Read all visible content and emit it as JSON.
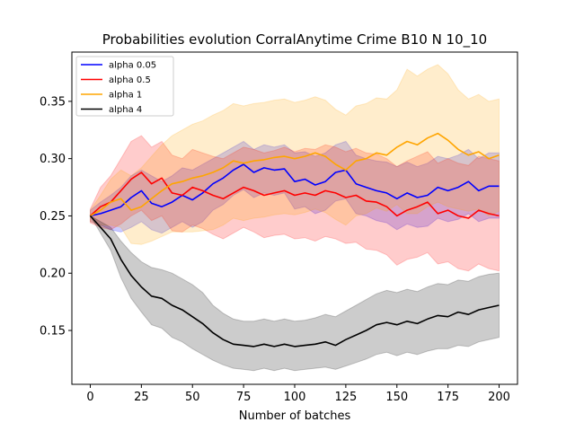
{
  "chart_data": {
    "type": "line",
    "title": "Probabilities evolution CorralAnytime Crime B10 N 10_10",
    "xlabel": "Number of batches",
    "ylabel": "",
    "xlim": [
      -9,
      209
    ],
    "ylim": [
      0.103,
      0.393
    ],
    "xticks": [
      0,
      25,
      50,
      75,
      100,
      125,
      150,
      175,
      200
    ],
    "yticks": [
      0.15,
      0.2,
      0.25,
      0.3,
      0.35
    ],
    "ytick_labels": [
      "0.15",
      "0.20",
      "0.25",
      "0.30",
      "0.35"
    ],
    "grid": false,
    "legend_position": "top-left",
    "x": [
      0,
      5,
      10,
      15,
      20,
      25,
      30,
      35,
      40,
      45,
      50,
      55,
      60,
      65,
      70,
      75,
      80,
      85,
      90,
      95,
      100,
      105,
      110,
      115,
      120,
      125,
      130,
      135,
      140,
      145,
      150,
      155,
      160,
      165,
      170,
      175,
      180,
      185,
      190,
      195,
      200
    ],
    "series": [
      {
        "name": "alpha 0.05",
        "color": "#0000ff",
        "values": [
          0.25,
          0.252,
          0.255,
          0.258,
          0.266,
          0.272,
          0.261,
          0.258,
          0.262,
          0.268,
          0.264,
          0.27,
          0.278,
          0.283,
          0.29,
          0.295,
          0.288,
          0.292,
          0.29,
          0.291,
          0.28,
          0.282,
          0.277,
          0.28,
          0.288,
          0.29,
          0.278,
          0.275,
          0.272,
          0.27,
          0.265,
          0.27,
          0.266,
          0.268,
          0.275,
          0.272,
          0.275,
          0.28,
          0.272,
          0.276,
          0.276
        ],
        "upper": [
          0.255,
          0.262,
          0.268,
          0.275,
          0.285,
          0.29,
          0.285,
          0.28,
          0.285,
          0.292,
          0.29,
          0.295,
          0.3,
          0.305,
          0.31,
          0.315,
          0.308,
          0.312,
          0.31,
          0.312,
          0.305,
          0.306,
          0.302,
          0.305,
          0.312,
          0.315,
          0.303,
          0.3,
          0.298,
          0.297,
          0.293,
          0.297,
          0.293,
          0.296,
          0.302,
          0.3,
          0.303,
          0.308,
          0.3,
          0.305,
          0.305
        ],
        "lower": [
          0.245,
          0.242,
          0.238,
          0.236,
          0.24,
          0.245,
          0.238,
          0.235,
          0.24,
          0.245,
          0.24,
          0.245,
          0.255,
          0.26,
          0.268,
          0.273,
          0.266,
          0.27,
          0.268,
          0.27,
          0.256,
          0.258,
          0.252,
          0.255,
          0.263,
          0.265,
          0.252,
          0.25,
          0.246,
          0.244,
          0.238,
          0.243,
          0.24,
          0.241,
          0.248,
          0.245,
          0.247,
          0.252,
          0.245,
          0.248,
          0.248
        ]
      },
      {
        "name": "alpha 0.5",
        "color": "#ff0000",
        "values": [
          0.25,
          0.258,
          0.262,
          0.272,
          0.282,
          0.288,
          0.278,
          0.283,
          0.27,
          0.268,
          0.275,
          0.272,
          0.268,
          0.265,
          0.27,
          0.275,
          0.272,
          0.268,
          0.27,
          0.272,
          0.268,
          0.27,
          0.268,
          0.272,
          0.27,
          0.266,
          0.268,
          0.263,
          0.262,
          0.258,
          0.25,
          0.255,
          0.258,
          0.262,
          0.252,
          0.255,
          0.25,
          0.248,
          0.255,
          0.252,
          0.25
        ],
        "upper": [
          0.256,
          0.275,
          0.285,
          0.3,
          0.315,
          0.32,
          0.31,
          0.315,
          0.303,
          0.3,
          0.308,
          0.305,
          0.302,
          0.3,
          0.305,
          0.31,
          0.308,
          0.305,
          0.307,
          0.31,
          0.306,
          0.309,
          0.308,
          0.312,
          0.31,
          0.306,
          0.309,
          0.305,
          0.304,
          0.3,
          0.293,
          0.298,
          0.302,
          0.306,
          0.296,
          0.3,
          0.296,
          0.294,
          0.302,
          0.3,
          0.298
        ],
        "lower": [
          0.244,
          0.24,
          0.238,
          0.243,
          0.25,
          0.255,
          0.246,
          0.25,
          0.237,
          0.236,
          0.242,
          0.239,
          0.234,
          0.23,
          0.235,
          0.24,
          0.236,
          0.231,
          0.233,
          0.234,
          0.23,
          0.231,
          0.228,
          0.232,
          0.23,
          0.226,
          0.227,
          0.221,
          0.22,
          0.216,
          0.207,
          0.212,
          0.214,
          0.218,
          0.208,
          0.21,
          0.204,
          0.202,
          0.208,
          0.204,
          0.202
        ]
      },
      {
        "name": "alpha 1",
        "color": "#ffa500",
        "values": [
          0.25,
          0.255,
          0.262,
          0.265,
          0.255,
          0.258,
          0.265,
          0.272,
          0.278,
          0.28,
          0.283,
          0.285,
          0.288,
          0.292,
          0.298,
          0.296,
          0.298,
          0.299,
          0.301,
          0.302,
          0.3,
          0.302,
          0.305,
          0.302,
          0.295,
          0.29,
          0.298,
          0.3,
          0.305,
          0.303,
          0.31,
          0.315,
          0.312,
          0.318,
          0.322,
          0.316,
          0.308,
          0.303,
          0.306,
          0.3,
          0.303
        ],
        "upper": [
          0.255,
          0.268,
          0.282,
          0.29,
          0.285,
          0.292,
          0.302,
          0.312,
          0.32,
          0.325,
          0.33,
          0.333,
          0.338,
          0.342,
          0.348,
          0.346,
          0.348,
          0.349,
          0.351,
          0.352,
          0.349,
          0.351,
          0.354,
          0.351,
          0.343,
          0.338,
          0.346,
          0.348,
          0.353,
          0.352,
          0.36,
          0.378,
          0.372,
          0.378,
          0.382,
          0.374,
          0.36,
          0.352,
          0.356,
          0.35,
          0.352
        ],
        "lower": [
          0.245,
          0.242,
          0.242,
          0.24,
          0.226,
          0.225,
          0.228,
          0.232,
          0.236,
          0.236,
          0.236,
          0.237,
          0.238,
          0.242,
          0.248,
          0.246,
          0.248,
          0.249,
          0.251,
          0.252,
          0.251,
          0.253,
          0.256,
          0.253,
          0.247,
          0.242,
          0.25,
          0.252,
          0.257,
          0.254,
          0.26,
          0.252,
          0.252,
          0.258,
          0.262,
          0.258,
          0.256,
          0.254,
          0.256,
          0.25,
          0.254
        ]
      },
      {
        "name": "alpha 4",
        "color": "#000000",
        "values": [
          0.25,
          0.24,
          0.23,
          0.212,
          0.198,
          0.188,
          0.18,
          0.178,
          0.172,
          0.168,
          0.162,
          0.156,
          0.148,
          0.142,
          0.138,
          0.137,
          0.136,
          0.138,
          0.136,
          0.138,
          0.136,
          0.137,
          0.138,
          0.14,
          0.137,
          0.142,
          0.146,
          0.15,
          0.155,
          0.157,
          0.155,
          0.158,
          0.156,
          0.16,
          0.163,
          0.162,
          0.166,
          0.164,
          0.168,
          0.17,
          0.172
        ],
        "upper": [
          0.25,
          0.245,
          0.24,
          0.228,
          0.218,
          0.21,
          0.205,
          0.203,
          0.2,
          0.195,
          0.19,
          0.183,
          0.172,
          0.165,
          0.16,
          0.158,
          0.158,
          0.16,
          0.158,
          0.16,
          0.158,
          0.159,
          0.161,
          0.164,
          0.162,
          0.167,
          0.172,
          0.177,
          0.182,
          0.185,
          0.183,
          0.186,
          0.184,
          0.188,
          0.191,
          0.19,
          0.194,
          0.193,
          0.197,
          0.199,
          0.2
        ],
        "lower": [
          0.25,
          0.235,
          0.22,
          0.196,
          0.178,
          0.166,
          0.155,
          0.152,
          0.144,
          0.14,
          0.134,
          0.129,
          0.124,
          0.12,
          0.117,
          0.116,
          0.115,
          0.117,
          0.115,
          0.117,
          0.115,
          0.116,
          0.117,
          0.118,
          0.116,
          0.119,
          0.122,
          0.125,
          0.129,
          0.131,
          0.128,
          0.131,
          0.129,
          0.132,
          0.134,
          0.134,
          0.137,
          0.136,
          0.14,
          0.142,
          0.144
        ]
      }
    ]
  }
}
